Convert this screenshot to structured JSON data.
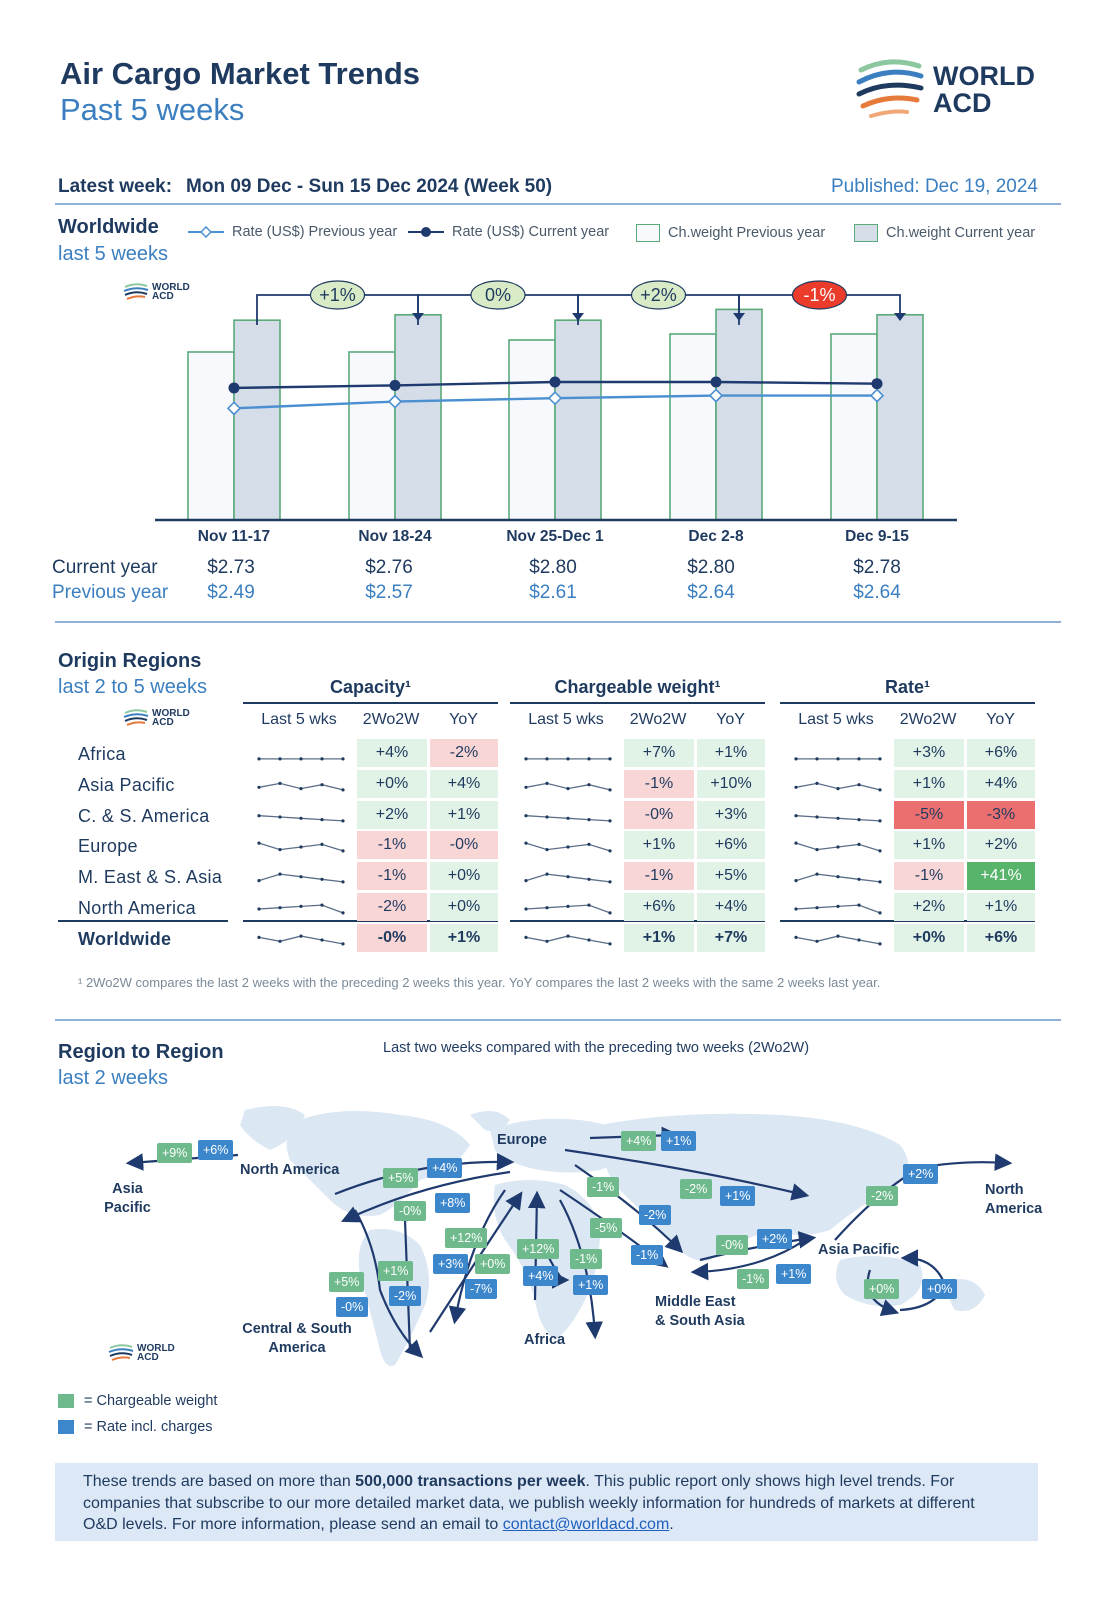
{
  "header": {
    "title": "Air Cargo Market Trends",
    "subtitle": "Past 5 weeks",
    "logo_line1": "WORLD",
    "logo_line2": "ACD",
    "latest_label": "Latest week:",
    "latest_value": "Mon 09 Dec - Sun 15 Dec 2024 (Week 50)",
    "published": "Published: Dec 19, 2024"
  },
  "worldwide": {
    "title": "Worldwide",
    "subtitle": "last 5 weeks",
    "legend": {
      "rate_prev": "Rate (US$) Previous year",
      "rate_curr": "Rate (US$) Current year",
      "cw_prev": "Ch.weight Previous year",
      "cw_curr": "Ch.weight Current year"
    },
    "row_current_label": "Current year",
    "row_previous_label": "Previous year",
    "changes": [
      "+1%",
      "0%",
      "+2%",
      "-1%"
    ]
  },
  "chart_data": {
    "type": "bar",
    "categories": [
      "Nov 11-17",
      "Nov 18-24",
      "Nov 25-Dec 1",
      "Dec 2-8",
      "Dec 9-15"
    ],
    "series": [
      {
        "name": "Ch.weight Previous year",
        "type": "bar",
        "values": [
          88,
          88,
          90,
          91,
          91
        ]
      },
      {
        "name": "Ch.weight Current year",
        "type": "bar",
        "values": [
          97,
          98,
          97,
          99,
          98
        ]
      },
      {
        "name": "Rate (US$) Previous year",
        "type": "line",
        "values": [
          "$2.49",
          "$2.57",
          "$2.61",
          "$2.64",
          "$2.64"
        ],
        "numeric": [
          2.49,
          2.57,
          2.61,
          2.64,
          2.64
        ]
      },
      {
        "name": "Rate (US$) Current year",
        "type": "line",
        "values": [
          "$2.73",
          "$2.76",
          "$2.80",
          "$2.80",
          "$2.78"
        ],
        "numeric": [
          2.73,
          2.76,
          2.8,
          2.8,
          2.78
        ]
      }
    ],
    "week_on_week_weight_change": [
      "+1%",
      "0%",
      "+2%",
      "-1%"
    ],
    "grid": false,
    "legend_position": "top"
  },
  "origin": {
    "title": "Origin Regions",
    "subtitle": "last 2 to 5 weeks",
    "groups": [
      {
        "header": "Capacity¹"
      },
      {
        "header": "Chargeable weight¹"
      },
      {
        "header": "Rate¹"
      }
    ],
    "subheaders": [
      "Last 5 wks",
      "2Wo2W",
      "YoY"
    ],
    "regions": [
      "Africa",
      "Asia Pacific",
      "C. & S. America",
      "Europe",
      "M. East & S. Asia",
      "North America",
      "Worldwide"
    ],
    "capacity": [
      [
        "+4%",
        "-2%"
      ],
      [
        "+0%",
        "+4%"
      ],
      [
        "+2%",
        "+1%"
      ],
      [
        "-1%",
        "-0%"
      ],
      [
        "-1%",
        "+0%"
      ],
      [
        "-2%",
        "+0%"
      ],
      [
        "-0%",
        "+1%"
      ]
    ],
    "chargeable_weight": [
      [
        "+7%",
        "+1%"
      ],
      [
        "-1%",
        "+10%"
      ],
      [
        "-0%",
        "+3%"
      ],
      [
        "+1%",
        "+6%"
      ],
      [
        "-1%",
        "+5%"
      ],
      [
        "+6%",
        "+4%"
      ],
      [
        "+1%",
        "+7%"
      ]
    ],
    "rate": [
      [
        "+3%",
        "+6%"
      ],
      [
        "+1%",
        "+4%"
      ],
      [
        "-5%",
        "-3%"
      ],
      [
        "+1%",
        "+2%"
      ],
      [
        "-1%",
        "+41%"
      ],
      [
        "+2%",
        "+1%"
      ],
      [
        "+0%",
        "+6%"
      ]
    ],
    "footnote": "¹ 2Wo2W compares the last 2 weeks with the preceding 2 weeks this year. YoY compares the last 2 weeks with the same 2 weeks last year."
  },
  "region_to_region": {
    "title": "Region to Region",
    "subtitle": "last 2 weeks",
    "caption": "Last two weeks compared with the preceding two weeks (2Wo2W)",
    "labels": {
      "asia_pacific_left_1": "Asia",
      "asia_pacific_left_2": "Pacific",
      "north_america": "North America",
      "europe": "Europe",
      "central_1": "Central & South",
      "central_2": "America",
      "africa": "Africa",
      "mesa_1": "Middle East",
      "mesa_2": "& South Asia",
      "asia_pacific": "Asia Pacific",
      "north_america_right_1": "North",
      "north_america_right_2": "America"
    },
    "badges": {
      "b1": "+9%",
      "b2": "+6%",
      "b3": "+5%",
      "b4": "+4%",
      "b5": "-0%",
      "b6": "+8%",
      "b7": "+4%",
      "b8": "+1%",
      "b9": "-1%",
      "b10": "-2%",
      "b11": "+1%",
      "b12": "-2%",
      "b13": "+2%",
      "b14": "-5%",
      "b15": "-1%",
      "b16": "-0%",
      "b17": "+2%",
      "b18": "-1%",
      "b19": "+1%",
      "b20": "+12%",
      "b21": "+3%",
      "b22": "+0%",
      "b23": "-7%",
      "b24": "+12%",
      "b25": "+4%",
      "b26": "-1%",
      "b27": "+1%",
      "b28": "+5%",
      "b29": "-0%",
      "b30": "+1%",
      "b31": "-2%",
      "b32": "+0%",
      "b33": "+0%"
    },
    "key": {
      "green": "= Chargeable weight",
      "blue": "= Rate incl. charges"
    }
  },
  "info": {
    "part1": "These trends are based on more than ",
    "bold": "500,000 transactions per week",
    "part2": ". This public report only shows high level trends. For companies that subscribe to our more detailed market data, we publish weekly information for hundreds of markets at different O&D levels. For more information, please send an email to ",
    "email": "contact@worldacd.com",
    "part3": "."
  },
  "colors": {
    "navy": "#1f3a5f",
    "blue": "#3b7fc0",
    "green_badge": "#6fba8c",
    "blue_badge": "#3c86cc",
    "neg_light": "#f9d6d6",
    "neg_strong": "#ec6f6f",
    "pos_light": "#e1f2e6",
    "pos_strong": "#58b36b"
  }
}
